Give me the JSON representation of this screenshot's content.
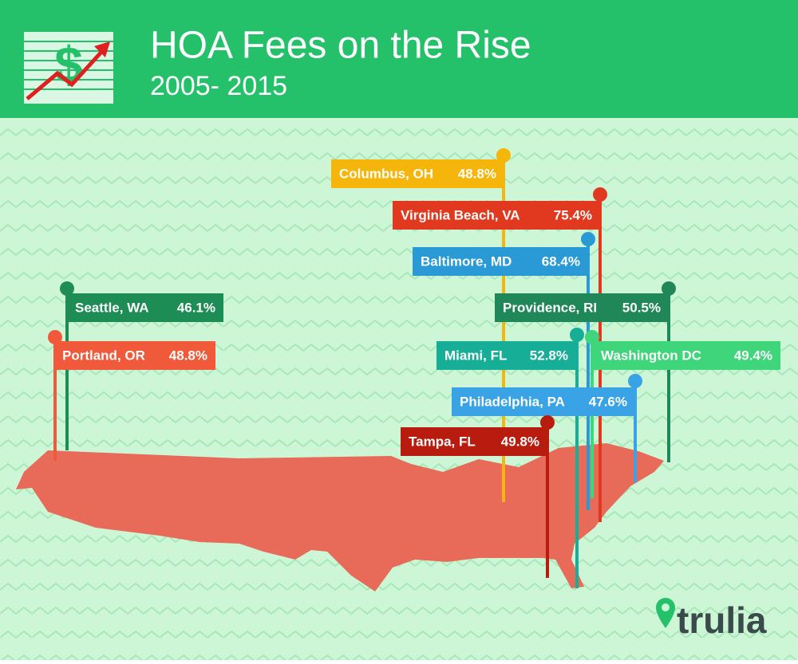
{
  "header": {
    "title": "HOA Fees on the Rise",
    "subtitle": "2005- 2015",
    "icon_text": "$"
  },
  "pins": [
    {
      "city": "Columbus, OH",
      "value": "48.8%",
      "color": "#f5b50a"
    },
    {
      "city": "Virginia Beach, VA",
      "value": "75.4%",
      "color": "#e0391f"
    },
    {
      "city": "Baltimore, MD",
      "value": "68.4%",
      "color": "#2a9ad6"
    },
    {
      "city": "Seattle, WA",
      "value": "46.1%",
      "color": "#1e8c55"
    },
    {
      "city": "Providence, RI",
      "value": "50.5%",
      "color": "#1f8758"
    },
    {
      "city": "Portland, OR",
      "value": "48.8%",
      "color": "#f05a3a"
    },
    {
      "city": "Miami, FL",
      "value": "52.8%",
      "color": "#17ae98"
    },
    {
      "city": "Washington DC",
      "value": "49.4%",
      "color": "#3fd57a"
    },
    {
      "city": "Philadelphia, PA",
      "value": "47.6%",
      "color": "#3aa3e6"
    },
    {
      "city": "Tampa, FL",
      "value": "49.8%",
      "color": "#b81c0e"
    }
  ],
  "brand": "trulia"
}
